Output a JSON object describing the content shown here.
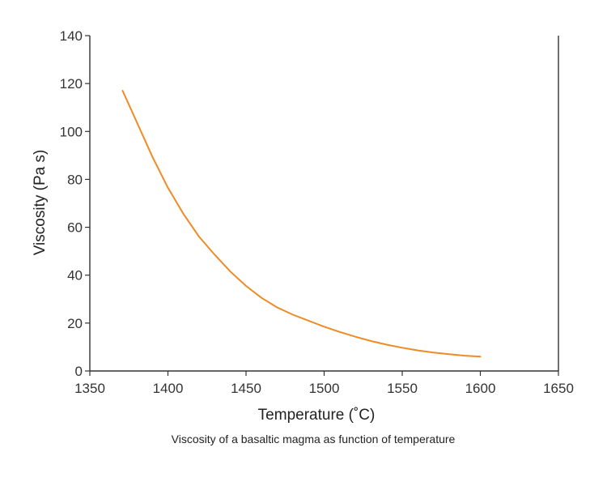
{
  "chart_data": {
    "type": "line",
    "title": "",
    "caption": "Viscosity of a basaltic magma as function of temperature",
    "xlabel": "Temperature (˚C)",
    "ylabel": "Viscosity (Pa s)",
    "xlim": [
      1350,
      1650
    ],
    "ylim": [
      0,
      140
    ],
    "xticks": [
      "1350",
      "1400",
      "1450",
      "1500",
      "1550",
      "1600",
      "1650"
    ],
    "yticks": [
      "0",
      "20",
      "40",
      "60",
      "80",
      "100",
      "120",
      "140"
    ],
    "grid": false,
    "legend": "none",
    "series": [
      {
        "color": "#f08a24",
        "x": [
          1371,
          1380,
          1390,
          1400,
          1410,
          1420,
          1430,
          1440,
          1450,
          1460,
          1470,
          1480,
          1490,
          1500,
          1510,
          1520,
          1530,
          1540,
          1550,
          1560,
          1570,
          1580,
          1590,
          1600
        ],
        "y": [
          117,
          104,
          89.5,
          76.5,
          65.5,
          56,
          48.5,
          41.5,
          35.5,
          30.5,
          26.5,
          23.5,
          21,
          18.5,
          16.3,
          14.3,
          12.5,
          11,
          9.7,
          8.6,
          7.7,
          7,
          6.4,
          6
        ]
      }
    ]
  }
}
